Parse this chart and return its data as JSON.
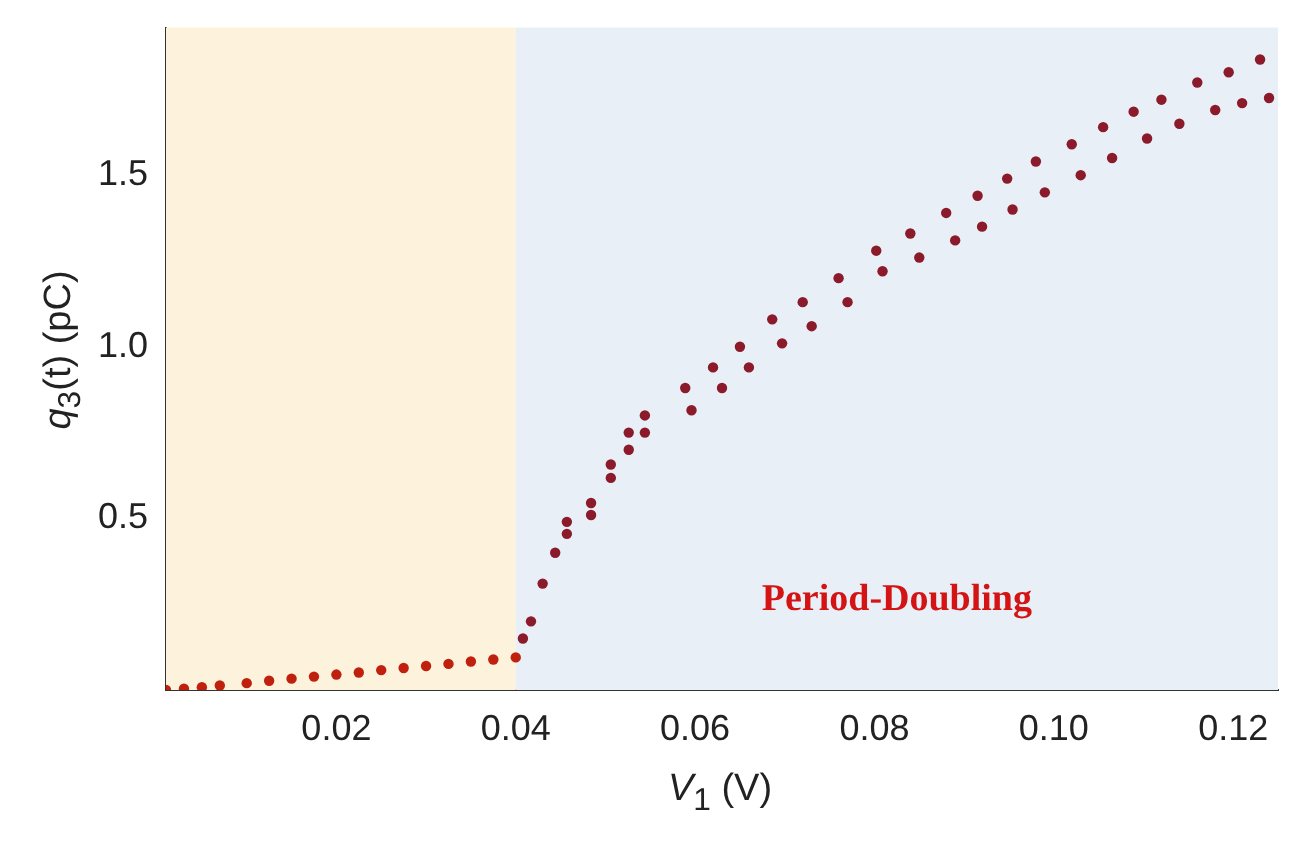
{
  "chart_data": {
    "type": "scatter",
    "xlabel": "V$_{1}$ (V)",
    "ylabel": "q$_{3}$(t)  (pC)",
    "xlim": [
      0.001,
      0.125
    ],
    "ylim": [
      0,
      1.93
    ],
    "xticks": [
      0.02,
      0.04,
      0.06,
      0.08,
      {
        "value": 0.1,
        "label": "0.10"
      },
      0.12
    ],
    "yticks": [
      0.5,
      {
        "value": 1,
        "label": "1.0"
      },
      1.5
    ],
    "marker": "circle",
    "bands": [
      {
        "axis": "x",
        "from": 0.001,
        "to": 0.04,
        "label": null,
        "color": "#fdf3dc"
      },
      {
        "axis": "x",
        "from": 0.04,
        "to": 0.125,
        "label": "Period-Doubling",
        "color": "#e9eff7"
      }
    ],
    "series": [
      {
        "color": "#c0200e",
        "x": [
          0.001,
          0.003,
          0.005,
          0.007,
          0.01,
          0.0125,
          0.015,
          0.0175,
          0.02,
          0.0225,
          0.025,
          0.0275,
          0.03,
          0.0325,
          0.035,
          0.0375,
          0.04
        ],
        "values": [
          0,
          0.004,
          0.008,
          0.013,
          0.02,
          0.027,
          0.033,
          0.039,
          0.045,
          0.051,
          0.058,
          0.064,
          0.07,
          0.076,
          0.083,
          0.089,
          0.095
        ]
      },
      {
        "color": "#8b1a2a",
        "x": [
          0.0408,
          0.0417,
          0.043,
          0.0444,
          0.0457,
          0.0484,
          0.0506,
          0.0526,
          0.0544,
          0.0589,
          0.062,
          0.065,
          0.0686,
          0.072,
          0.076,
          0.0802,
          0.084,
          0.088,
          0.0915,
          0.0948,
          0.098,
          0.102,
          0.1055,
          0.1089,
          0.112,
          0.116,
          0.1195,
          0.123
        ],
        "values": [
          0.15,
          0.2,
          0.31,
          0.4,
          0.49,
          0.545,
          0.657,
          0.75,
          0.8,
          0.88,
          0.94,
          1.0,
          1.08,
          1.13,
          1.2,
          1.28,
          1.33,
          1.39,
          1.44,
          1.49,
          1.54,
          1.59,
          1.64,
          1.685,
          1.72,
          1.77,
          1.8,
          1.837
        ]
      },
      {
        "color": "#8b1a2a",
        "x": [
          0.0457,
          0.0484,
          0.0506,
          0.0526,
          0.0544,
          0.0596,
          0.063,
          0.066,
          0.0697,
          0.073,
          0.077,
          0.0809,
          0.085,
          0.089,
          0.092,
          0.0954,
          0.099,
          0.103,
          0.1065,
          0.1104,
          0.114,
          0.118,
          0.121,
          0.124
        ],
        "values": [
          0.455,
          0.51,
          0.618,
          0.7,
          0.75,
          0.815,
          0.88,
          0.94,
          1.01,
          1.06,
          1.13,
          1.22,
          1.26,
          1.31,
          1.35,
          1.4,
          1.45,
          1.5,
          1.55,
          1.607,
          1.65,
          1.69,
          1.71,
          1.725
        ]
      }
    ]
  }
}
